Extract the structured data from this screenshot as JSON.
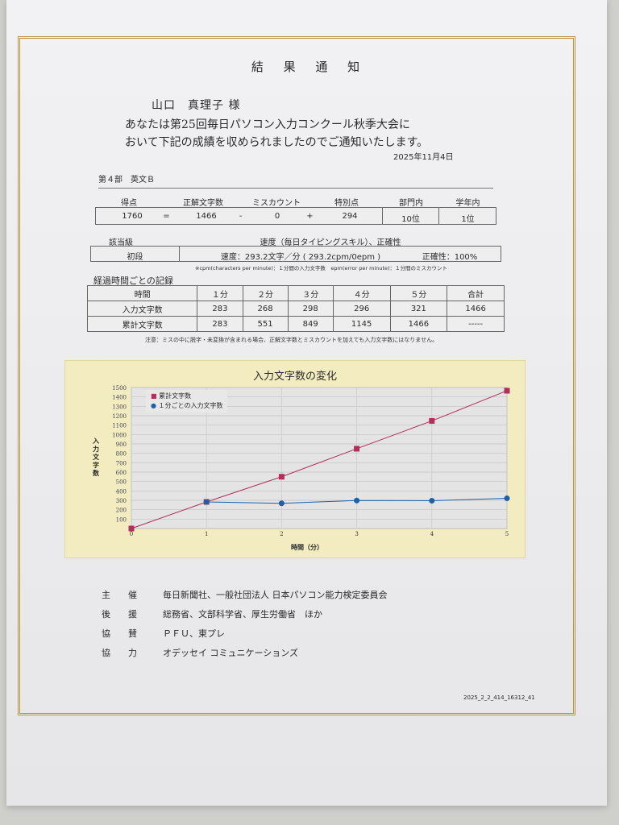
{
  "title": "結 果 通 知",
  "recipient": "山口　真理子 様",
  "intro": [
    "あなたは第25回毎日パソコン入力コンクール秋季大会に",
    "おいて下記の成績を収められましたのでご通知いたします。"
  ],
  "date": "2025年11月4日",
  "section": "第４部　英文Ｂ",
  "score": {
    "headers": {
      "score": "得点",
      "correct": "正解文字数",
      "miss": "ミスカウント",
      "bonus": "特別点",
      "dept_rank": "部門内",
      "grade_rank": "学年内"
    },
    "values": {
      "score": "1760",
      "eq": "=",
      "correct": "1466",
      "minus": "-",
      "miss": "0",
      "plus": "+",
      "bonus": "294",
      "dept_rank": "10位",
      "grade_rank": "1位"
    }
  },
  "level": {
    "header_level": "該当級",
    "header_speed": "速度（毎日タイピングスキル）、正確性",
    "level": "初段",
    "speed": "速度：293.2文字／分 ( 293.2cpm/0epm )",
    "accuracy": "正確性：100%",
    "note": "※cpm(characters per minute)：１分間の入力文字数　epm(error per minute)：１分間のミスカウント"
  },
  "record": {
    "heading": "経過時間ごとの記録",
    "columns": [
      "時間",
      "１分",
      "２分",
      "３分",
      "４分",
      "５分",
      "合計"
    ],
    "rows": [
      [
        "入力文字数",
        "283",
        "268",
        "298",
        "296",
        "321",
        "1466"
      ],
      [
        "累計文字数",
        "283",
        "551",
        "849",
        "1145",
        "1466",
        "-----"
      ]
    ],
    "note": "注意：ミスの中に脱字・未変換が含まれる場合、正解文字数とミスカウントを加えても入力文字数にはなりません。"
  },
  "chart_data": {
    "type": "line",
    "title": "入力文字数の変化",
    "xlabel": "時間（分）",
    "ylabel": "入力文字数",
    "xlim": [
      0,
      5
    ],
    "ylim": [
      0,
      1500
    ],
    "yticks": [
      100,
      200,
      300,
      400,
      500,
      600,
      700,
      800,
      900,
      1000,
      1100,
      1200,
      1300,
      1400,
      1500
    ],
    "xticks": [
      0,
      1,
      2,
      3,
      4,
      5
    ],
    "grid": true,
    "legend": "top-left",
    "series": [
      {
        "name": "累計文字数",
        "color": "#b0305a",
        "marker": "square",
        "x": [
          0,
          1,
          2,
          3,
          4,
          5
        ],
        "y": [
          0,
          283,
          551,
          849,
          1145,
          1466
        ]
      },
      {
        "name": "１分ごとの入力文字数",
        "color": "#1f5fa8",
        "marker": "circle",
        "x": [
          1,
          2,
          3,
          4,
          5
        ],
        "y": [
          283,
          268,
          298,
          296,
          321
        ]
      }
    ]
  },
  "sponsors": [
    {
      "role": "主　　催",
      "names": "毎日新聞社、一般社団法人 日本パソコン能力検定委員会"
    },
    {
      "role": "後　　援",
      "names": "総務省、文部科学省、厚生労働省　ほか"
    },
    {
      "role": "協　　賛",
      "names": "ＰＦＵ、東プレ"
    },
    {
      "role": "協　　力",
      "names": "オデッセイ コミュニケーションズ"
    }
  ],
  "doc_id": "2025_2_2_414_16312_41",
  "colors": {
    "frame": "#b8953a",
    "chart_bg": "#f2ecc0"
  }
}
